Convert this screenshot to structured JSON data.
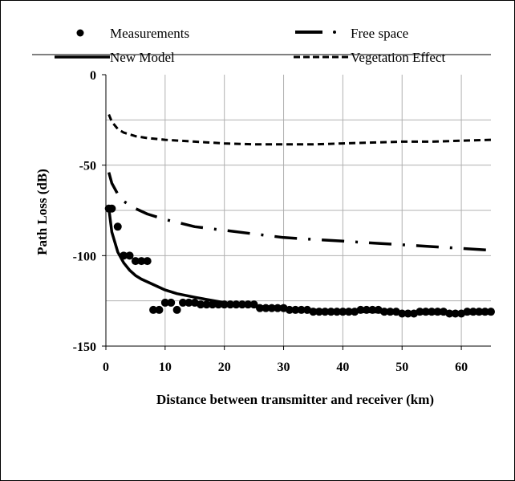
{
  "chart_data": {
    "type": "scatter",
    "title": "",
    "xlabel": "Distance between transmitter and receiver (km)",
    "ylabel": "Path Loss (dB)",
    "xlim": [
      0,
      65
    ],
    "ylim": [
      -150,
      0
    ],
    "x_ticks": [
      0,
      10,
      20,
      30,
      40,
      50,
      60
    ],
    "y_ticks": [
      0,
      -50,
      -100,
      -150
    ],
    "grid": "both",
    "legend": "top",
    "legend_entries": [
      "Measurements",
      "Free space",
      "New Model",
      "Vegetation Effect"
    ],
    "series": [
      {
        "name": "Measurements",
        "style": "markers",
        "x": [
          0.5,
          1,
          2,
          3,
          4,
          5,
          6,
          7,
          8,
          9,
          10,
          11,
          12,
          13,
          14,
          15,
          16,
          17,
          18,
          19,
          20,
          21,
          22,
          23,
          24,
          25,
          26,
          27,
          28,
          29,
          30,
          31,
          32,
          33,
          34,
          35,
          36,
          37,
          38,
          39,
          40,
          41,
          42,
          43,
          44,
          45,
          46,
          47,
          48,
          49,
          50,
          51,
          52,
          53,
          54,
          55,
          56,
          57,
          58,
          59,
          60,
          61,
          62,
          63,
          64,
          65
        ],
        "y": [
          -74,
          -74,
          -84,
          -100,
          -100,
          -103,
          -103,
          -103,
          -130,
          -130,
          -126,
          -126,
          -130,
          -126,
          -126,
          -126,
          -127,
          -127,
          -127,
          -127,
          -127,
          -127,
          -127,
          -127,
          -127,
          -127,
          -129,
          -129,
          -129,
          -129,
          -129,
          -130,
          -130,
          -130,
          -130,
          -131,
          -131,
          -131,
          -131,
          -131,
          -131,
          -131,
          -131,
          -130,
          -130,
          -130,
          -130,
          -131,
          -131,
          -131,
          -132,
          -132,
          -132,
          -131,
          -131,
          -131,
          -131,
          -131,
          -132,
          -132,
          -132,
          -131,
          -131,
          -131,
          -131,
          -131
        ]
      },
      {
        "name": "Free space",
        "style": "dash-dot",
        "x": [
          0.5,
          1,
          2,
          3,
          5,
          7,
          10,
          15,
          20,
          25,
          30,
          35,
          40,
          45,
          50,
          55,
          60,
          65
        ],
        "y": [
          -54,
          -60,
          -66,
          -70,
          -74,
          -77,
          -80,
          -84,
          -86,
          -88,
          -90,
          -91,
          -92,
          -93,
          -94,
          -95,
          -96,
          -97
        ]
      },
      {
        "name": "New Model",
        "style": "solid",
        "x": [
          0.5,
          1,
          2,
          3,
          4,
          5,
          6,
          8,
          10,
          12,
          15,
          20,
          25,
          30,
          35,
          40,
          45,
          50,
          55,
          60,
          65
        ],
        "y": [
          -74,
          -87,
          -98,
          -104,
          -108,
          -111,
          -113,
          -116,
          -119,
          -121,
          -123,
          -126,
          -128,
          -129,
          -130,
          -131,
          -131,
          -132,
          -132,
          -132,
          -132
        ]
      },
      {
        "name": "Vegetation Effect",
        "style": "dashed",
        "x": [
          0.5,
          1,
          2,
          3,
          5,
          7,
          10,
          15,
          20,
          25,
          30,
          35,
          40,
          45,
          50,
          55,
          60,
          65
        ],
        "y": [
          -22,
          -26,
          -30,
          -32,
          -34,
          -35,
          -36,
          -37,
          -38,
          -38.5,
          -38.5,
          -38.5,
          -38,
          -37.5,
          -37,
          -37,
          -36.5,
          -36
        ]
      }
    ]
  }
}
